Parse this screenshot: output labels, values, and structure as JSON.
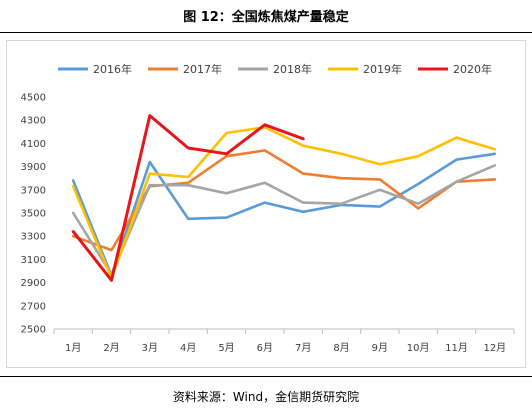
{
  "header": {
    "title": "图 12：全国炼焦煤产量稳定"
  },
  "footer": {
    "source": "资料来源：Wind，金信期货研究院"
  },
  "chart_data": {
    "type": "line",
    "title": "",
    "xlabel": "",
    "ylabel": "",
    "categories": [
      "1月",
      "2月",
      "3月",
      "4月",
      "5月",
      "6月",
      "7月",
      "8月",
      "9月",
      "10月",
      "11月",
      "12月"
    ],
    "ylim": [
      2500,
      4500
    ],
    "yticks": [
      2500,
      2700,
      2900,
      3100,
      3300,
      3500,
      3700,
      3900,
      4100,
      4300,
      4500
    ],
    "grid": false,
    "legend_position": "top",
    "series": [
      {
        "name": "2016年",
        "color": "#5B9BD5",
        "values": [
          3780,
          2960,
          3940,
          3450,
          3460,
          3590,
          3510,
          3570,
          3555,
          3750,
          3960,
          4010
        ]
      },
      {
        "name": "2017年",
        "color": "#ED7D31",
        "values": [
          3300,
          3180,
          3730,
          3760,
          3990,
          4040,
          3840,
          3800,
          3790,
          3540,
          3770,
          3790
        ]
      },
      {
        "name": "2018年",
        "color": "#A5A5A5",
        "values": [
          3500,
          2970,
          3740,
          3740,
          3670,
          3760,
          3590,
          3580,
          3700,
          3580,
          3770,
          3910
        ]
      },
      {
        "name": "2019年",
        "color": "#FFC000",
        "values": [
          3730,
          2940,
          3840,
          3810,
          4190,
          4240,
          4080,
          4010,
          3920,
          3990,
          4150,
          4050
        ]
      },
      {
        "name": "2020年",
        "color": "#E8161B",
        "values": [
          3340,
          2920,
          4340,
          4060,
          4010,
          4260,
          4140,
          null,
          null,
          null,
          null,
          null
        ]
      }
    ]
  }
}
